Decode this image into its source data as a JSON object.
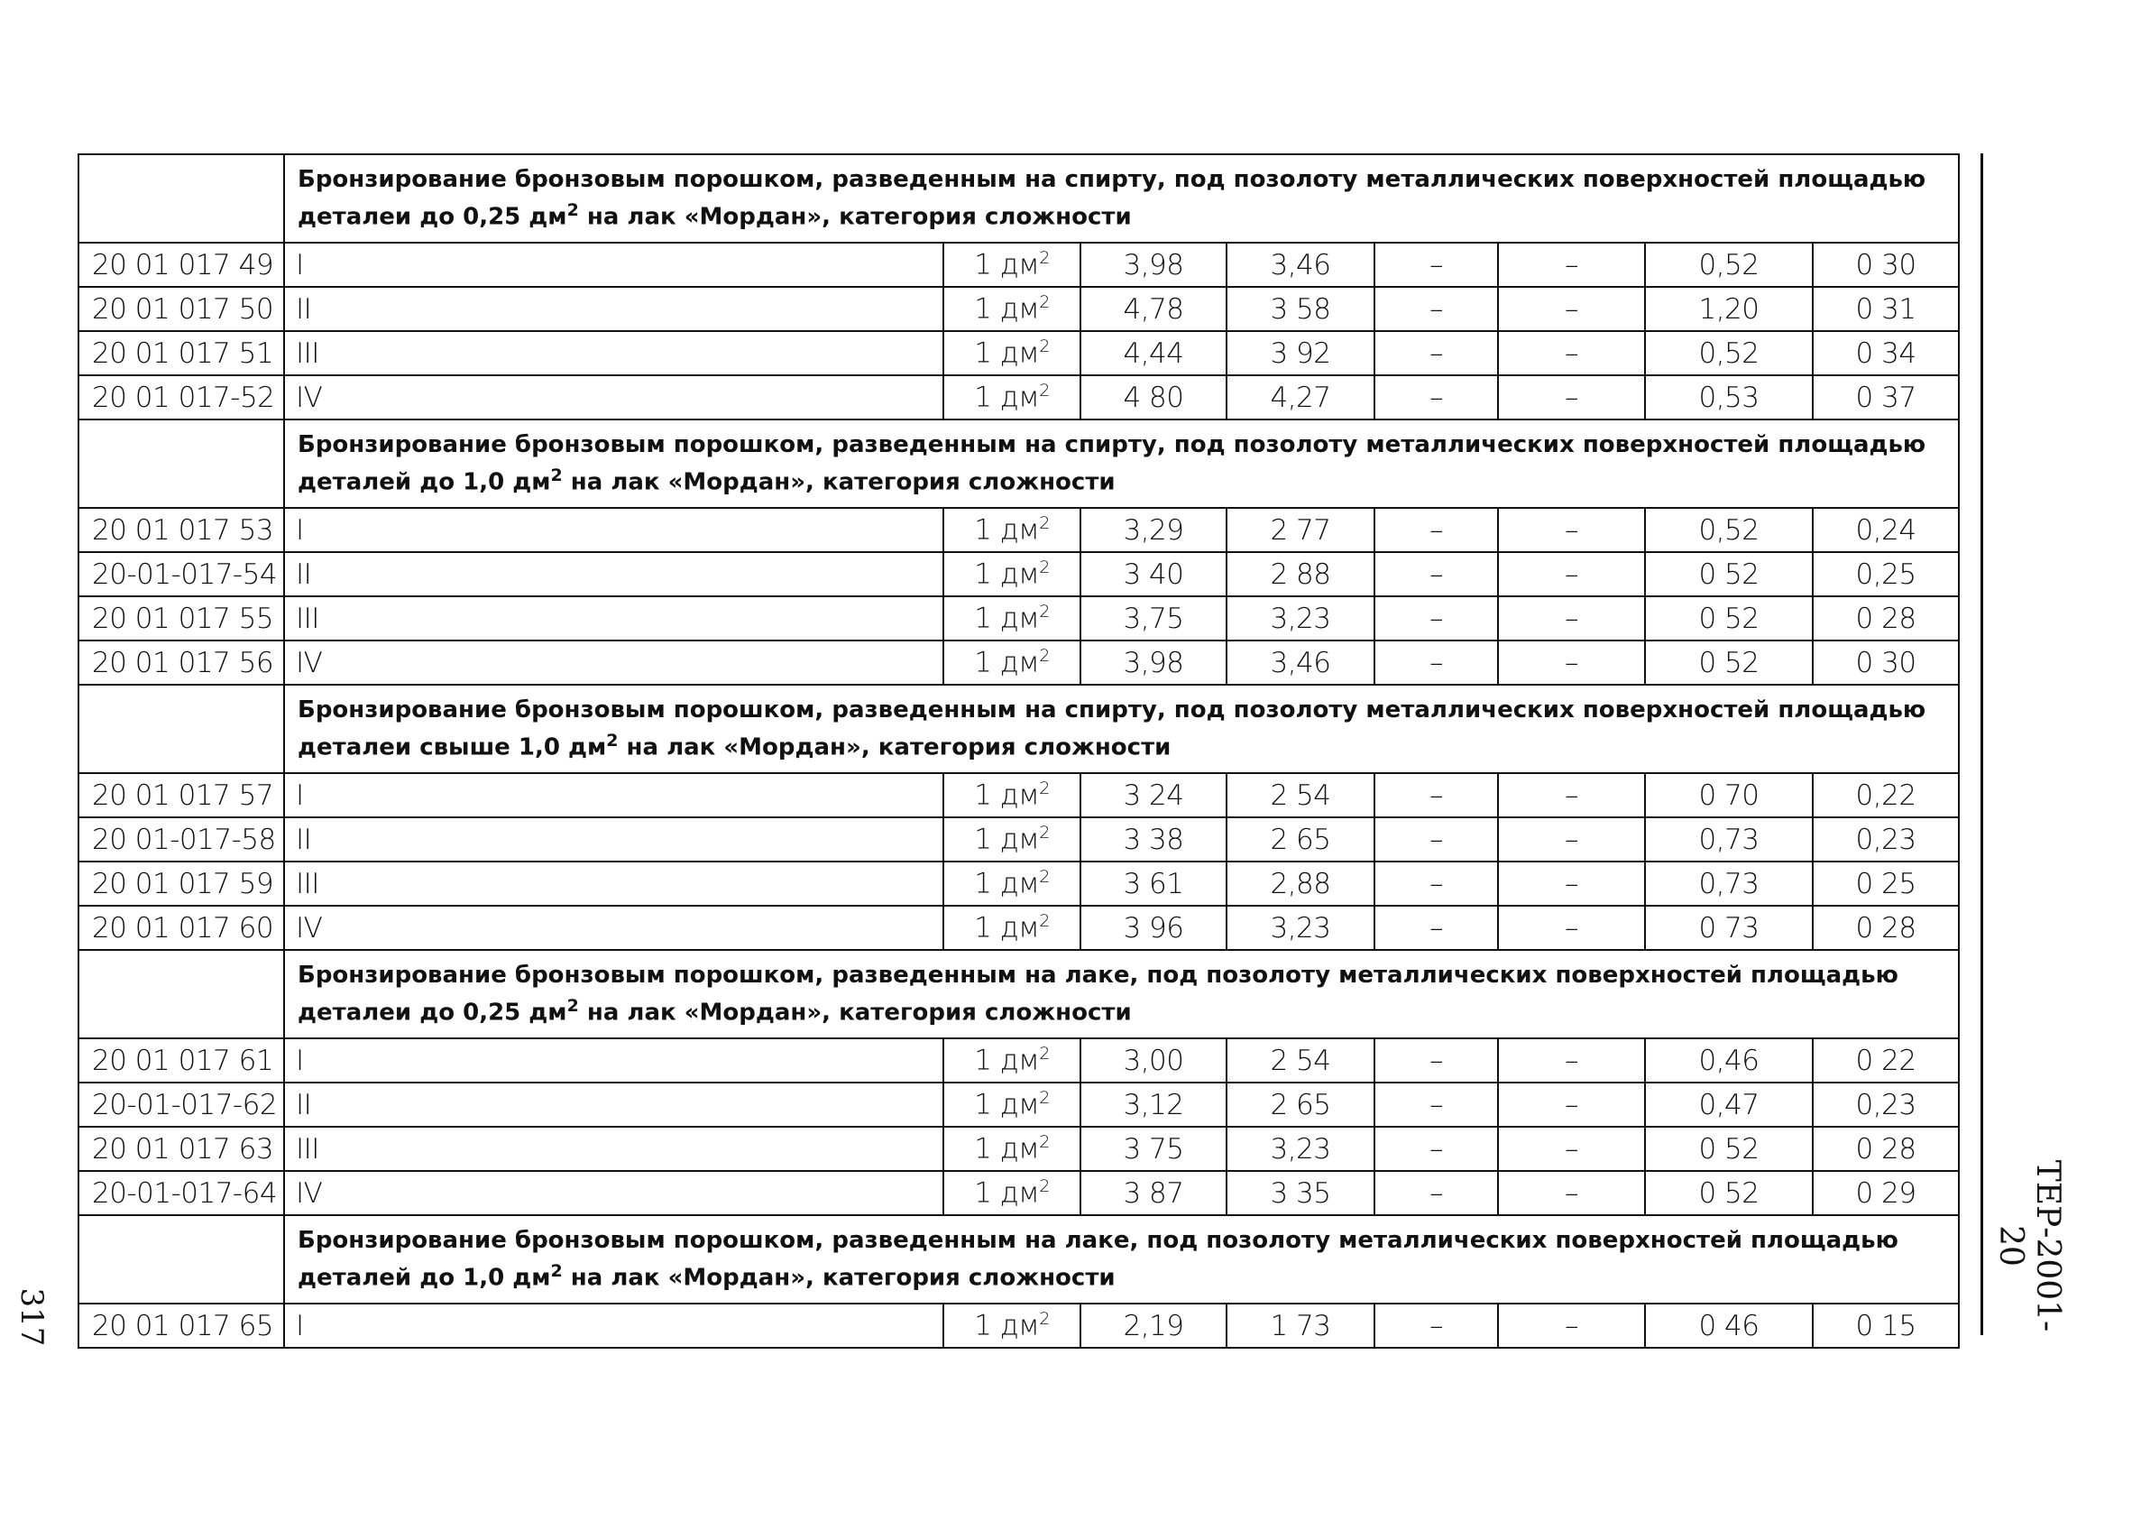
{
  "side_label": "ТЕР-2001-20",
  "page_number": "317",
  "sections": [
    {
      "title": "Бронзирование бронзовым порошком, разведенным на спирту, под позолоту металлических поверхностей площадью деталеи до 0,25 дм² на лак «Мордан», категория сложности",
      "rows": [
        [
          "20 01 017 49",
          "I",
          "1 дм²",
          "3,98",
          "3,46",
          "–",
          "–",
          "0,52",
          "0 30"
        ],
        [
          "20 01 017 50",
          "II",
          "1 дм²",
          "4,78",
          "3 58",
          "–",
          "–",
          "1,20",
          "0 31"
        ],
        [
          "20 01 017 51",
          "III",
          "1 дм²",
          "4,44",
          "3 92",
          "–",
          "–",
          "0,52",
          "0 34"
        ],
        [
          "20 01 017-52",
          "IV",
          "1 дм²",
          "4 80",
          "4,27",
          "–",
          "–",
          "0,53",
          "0 37"
        ]
      ]
    },
    {
      "title": "Бронзирование бронзовым порошком, разведенным на спирту, под позолоту металлических поверхностей площадью деталей до 1,0 дм² на лак «Мордан», категория сложности",
      "rows": [
        [
          "20 01 017 53",
          "I",
          "1 дм²",
          "3,29",
          "2 77",
          "–",
          "–",
          "0,52",
          "0,24"
        ],
        [
          "20-01-017-54",
          "II",
          "1 дм²",
          "3 40",
          "2 88",
          "–",
          "–",
          "0 52",
          "0,25"
        ],
        [
          "20 01 017 55",
          "III",
          "1 дм²",
          "3,75",
          "3,23",
          "–",
          "–",
          "0 52",
          "0 28"
        ],
        [
          "20 01 017 56",
          "IV",
          "1 дм²",
          "3,98",
          "3,46",
          "–",
          "–",
          "0 52",
          "0 30"
        ]
      ]
    },
    {
      "title": "Бронзирование бронзовым порошком, разведенным на спирту, под позолоту металлических поверхностей площадью деталеи свыше 1,0 дм² на лак «Мордан», категория сложности",
      "rows": [
        [
          "20 01 017 57",
          "I",
          "1 дм²",
          "3 24",
          "2 54",
          "–",
          "–",
          "0 70",
          "0,22"
        ],
        [
          "20 01-017-58",
          "II",
          "1 дм²",
          "3 38",
          "2 65",
          "–",
          "–",
          "0,73",
          "0,23"
        ],
        [
          "20 01 017 59",
          "III",
          "1 дм²",
          "3 61",
          "2,88",
          "–",
          "–",
          "0,73",
          "0 25"
        ],
        [
          "20 01 017 60",
          "IV",
          "1 дм²",
          "3 96",
          "3,23",
          "–",
          "–",
          "0 73",
          "0 28"
        ]
      ]
    },
    {
      "title": "Бронзирование бронзовым порошком, разведенным на лаке, под позолоту металлических поверхностей площадью деталеи до 0,25 дм² на лак «Мордан», категория сложности",
      "rows": [
        [
          "20 01 017 61",
          "I",
          "1 дм²",
          "3,00",
          "2 54",
          "–",
          "–",
          "0,46",
          "0 22"
        ],
        [
          "20-01-017-62",
          "II",
          "1 дм²",
          "3,12",
          "2 65",
          "–",
          "–",
          "0,47",
          "0,23"
        ],
        [
          "20 01 017 63",
          "III",
          "1 дм²",
          "3 75",
          "3,23",
          "–",
          "–",
          "0 52",
          "0 28"
        ],
        [
          "20-01-017-64",
          "IV",
          "1 дм²",
          "3 87",
          "3 35",
          "–",
          "–",
          "0 52",
          "0 29"
        ]
      ]
    },
    {
      "title": "Бронзирование бронзовым порошком, разведенным на лаке, под позолоту металлических поверхностей площадью деталей до 1,0 дм² на лак «Мордан», категория сложности",
      "rows": [
        [
          "20 01 017 65",
          "I",
          "1 дм²",
          "2,19",
          "1 73",
          "–",
          "–",
          "0 46",
          "0 15"
        ]
      ]
    }
  ]
}
